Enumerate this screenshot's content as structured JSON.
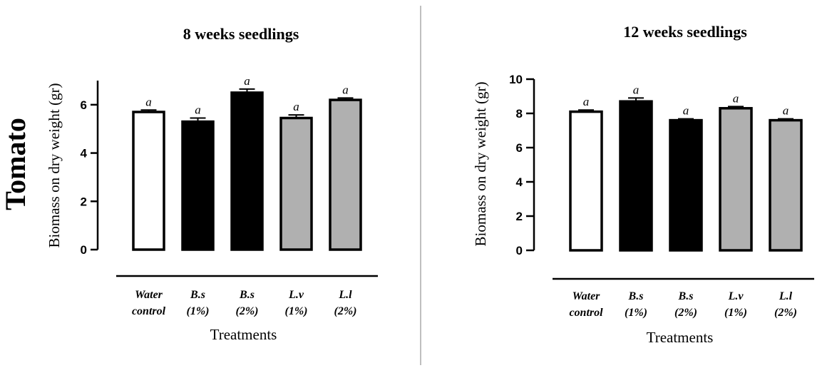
{
  "figure": {
    "side_label": "Tomato",
    "colors": {
      "divider": "#aaaaaa",
      "axis": "#000000"
    }
  },
  "chart_data": [
    {
      "type": "bar",
      "title": "8 weeks seedlings",
      "xlabel": "Treatments",
      "ylabel": "Biomass on dry weight (gr)",
      "ylim": [
        0,
        7
      ],
      "yticks": [
        0,
        2,
        4,
        6
      ],
      "categories": [
        [
          "Water",
          "control"
        ],
        [
          "B.s",
          "(1%)"
        ],
        [
          "B.s",
          "(2%)"
        ],
        [
          "L.v",
          "(1%)"
        ],
        [
          "L.l",
          "(2%)"
        ]
      ],
      "values": [
        5.7,
        5.3,
        6.5,
        5.45,
        6.2
      ],
      "errors": [
        0.08,
        0.15,
        0.15,
        0.13,
        0.08
      ],
      "fills": [
        "#ffffff",
        "#000000",
        "#000000",
        "#b0b0b0",
        "#b0b0b0"
      ],
      "significance": [
        "a",
        "a",
        "a",
        "a",
        "a"
      ]
    },
    {
      "type": "bar",
      "title": "12 weeks seedlings",
      "xlabel": "Treatments",
      "ylabel": "Biomass on dry weight (gr)",
      "ylim": [
        0,
        10
      ],
      "yticks": [
        0,
        2,
        4,
        6,
        8,
        10
      ],
      "categories": [
        [
          "Water",
          "control"
        ],
        [
          "B.s",
          "(1%)"
        ],
        [
          "B.s",
          "(2%)"
        ],
        [
          "L.v",
          "(1%)"
        ],
        [
          "L.l",
          "(2%)"
        ]
      ],
      "values": [
        8.1,
        8.7,
        7.6,
        8.3,
        7.6
      ],
      "errors": [
        0.1,
        0.2,
        0.08,
        0.1,
        0.08
      ],
      "fills": [
        "#ffffff",
        "#000000",
        "#000000",
        "#b0b0b0",
        "#b0b0b0"
      ],
      "significance": [
        "a",
        "a",
        "a",
        "a",
        "a"
      ]
    }
  ]
}
